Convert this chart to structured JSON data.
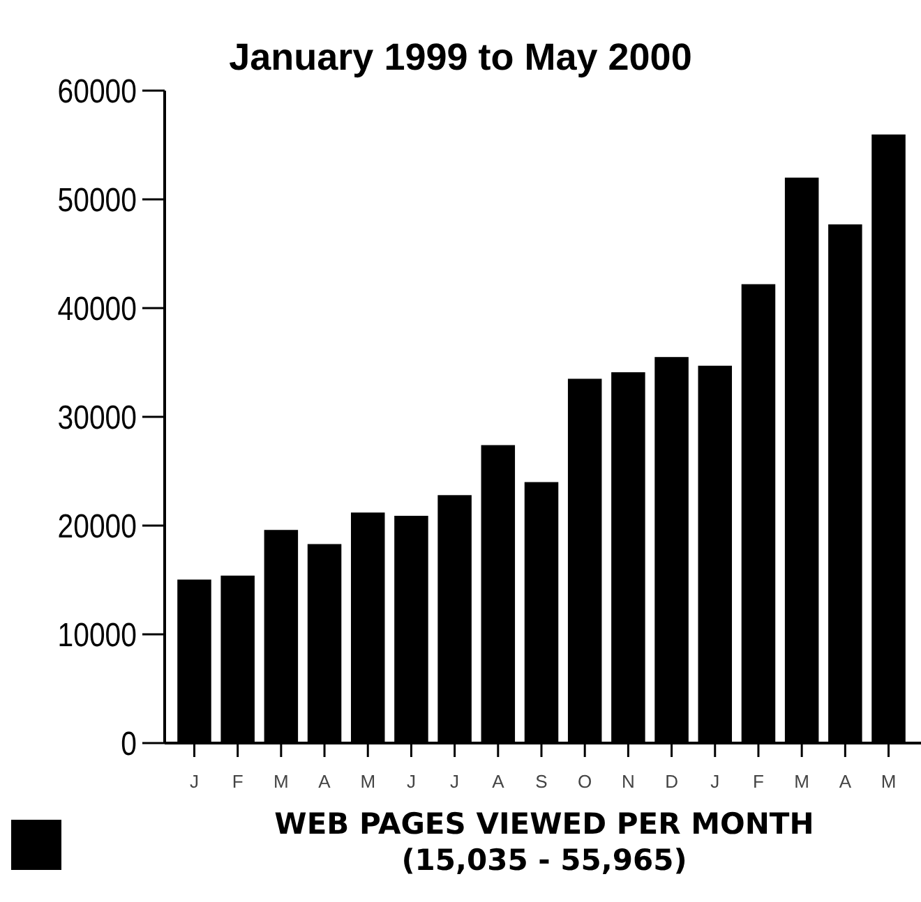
{
  "chart_data": {
    "type": "bar",
    "title": "January 1999 to May 2000",
    "categories": [
      "J",
      "F",
      "M",
      "A",
      "M",
      "J",
      "J",
      "A",
      "S",
      "O",
      "N",
      "D",
      "J",
      "F",
      "M",
      "A",
      "M"
    ],
    "series": [
      {
        "name": "WEB PAGES VIEWED PER MONTH\n(15,035 - 55,965)",
        "color": "#000000",
        "values": [
          15035,
          15400,
          19600,
          18300,
          21200,
          20900,
          22800,
          27400,
          24000,
          33500,
          34100,
          35500,
          34700,
          42200,
          52000,
          47700,
          55965
        ]
      }
    ],
    "ylim": [
      0,
      60000
    ],
    "yticks": [
      0,
      10000,
      20000,
      30000,
      40000,
      50000,
      60000
    ],
    "legend": "bottom left"
  }
}
